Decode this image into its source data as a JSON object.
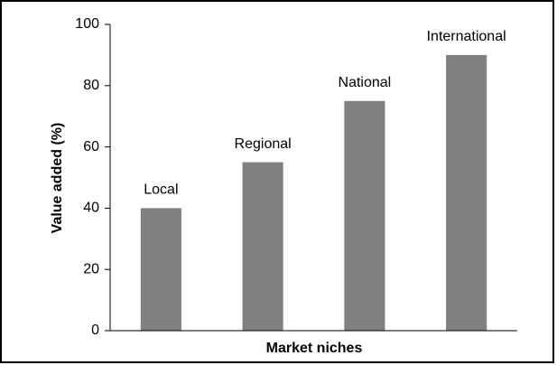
{
  "chart_data": {
    "type": "bar",
    "x_label": "Market niches",
    "y_label": "Value added (%)",
    "categories": [
      "Local",
      "Regional",
      "National",
      "International"
    ],
    "values": [
      40,
      55,
      75,
      90
    ],
    "color": "#808080",
    "ylim": [
      0,
      100
    ],
    "yticks": [
      0,
      20,
      40,
      60,
      80,
      100
    ],
    "grid": false
  }
}
